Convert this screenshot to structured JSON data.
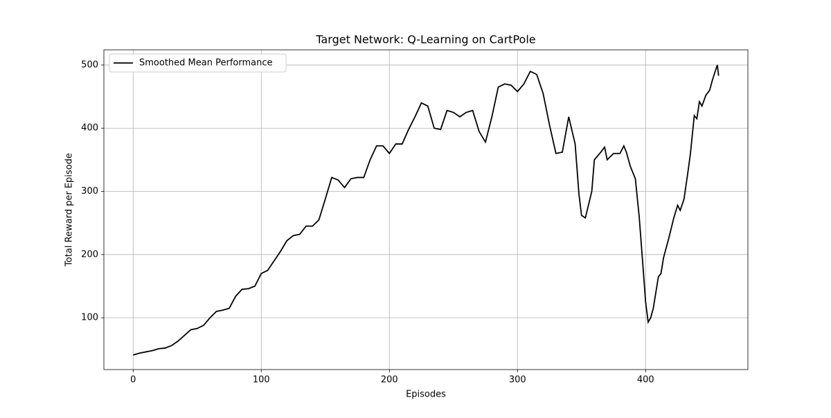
{
  "chart_data": {
    "type": "line",
    "title": "Target Network: Q-Learning on CartPole",
    "x_label": "Episodes",
    "y_label": "Total Reward per Episode",
    "x": [
      0,
      5,
      10,
      15,
      20,
      25,
      30,
      35,
      40,
      45,
      50,
      55,
      60,
      65,
      70,
      75,
      80,
      85,
      90,
      95,
      100,
      105,
      110,
      115,
      120,
      125,
      130,
      135,
      140,
      145,
      150,
      155,
      160,
      165,
      170,
      175,
      180,
      185,
      190,
      195,
      200,
      205,
      210,
      215,
      220,
      225,
      230,
      235,
      240,
      245,
      250,
      255,
      260,
      265,
      270,
      275,
      280,
      285,
      290,
      295,
      300,
      305,
      310,
      315,
      320,
      325,
      330,
      335,
      340,
      345,
      348,
      350,
      353,
      355,
      358,
      360,
      365,
      368,
      370,
      375,
      380,
      383,
      385,
      388,
      392,
      395,
      398,
      400,
      402,
      404,
      406,
      408,
      410,
      412,
      414,
      418,
      422,
      425,
      427,
      430,
      433,
      435,
      438,
      440,
      442,
      444,
      447,
      450,
      452,
      454,
      456,
      457
    ],
    "series": [
      {
        "name": "Smoothed Mean Performance",
        "color": "#000000",
        "values": [
          41,
          44,
          46,
          48,
          51,
          52,
          56,
          63,
          72,
          81,
          83,
          88,
          100,
          110,
          112,
          115,
          134,
          145,
          146,
          150,
          170,
          175,
          190,
          205,
          222,
          230,
          232,
          245,
          245,
          255,
          288,
          322,
          318,
          306,
          320,
          322,
          322,
          350,
          372,
          372,
          360,
          375,
          375,
          398,
          418,
          440,
          435,
          400,
          398,
          428,
          425,
          418,
          425,
          428,
          395,
          378,
          418,
          465,
          470,
          468,
          458,
          470,
          490,
          485,
          455,
          405,
          360,
          362,
          418,
          375,
          295,
          262,
          258,
          275,
          300,
          350,
          362,
          370,
          350,
          360,
          360,
          372,
          362,
          340,
          320,
          260,
          180,
          125,
          93,
          100,
          115,
          140,
          165,
          170,
          195,
          225,
          258,
          278,
          270,
          288,
          330,
          360,
          420,
          415,
          442,
          435,
          452,
          460,
          475,
          488,
          500,
          483
        ]
      }
    ],
    "xlim": [
      -22.85,
      479.85
    ],
    "ylim": [
      18,
      524
    ],
    "xticks": [
      0,
      100,
      200,
      300,
      400
    ],
    "yticks": [
      100,
      200,
      300,
      400,
      500
    ],
    "grid": true,
    "legend": "upper left"
  }
}
